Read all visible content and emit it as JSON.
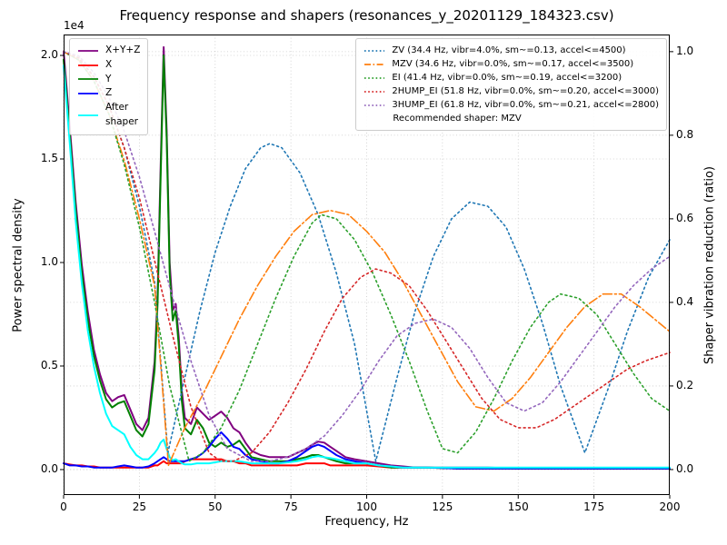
{
  "title": "Frequency response and shapers (resonances_y_20201129_184323.csv)",
  "axes": {
    "x": {
      "label": "Frequency, Hz",
      "range": [
        0,
        200
      ],
      "tick_values": [
        0,
        25,
        50,
        75,
        100,
        125,
        150,
        175,
        200
      ],
      "tick_labels": [
        "0",
        "25",
        "50",
        "75",
        "100",
        "125",
        "150",
        "175",
        "200"
      ]
    },
    "y_left": {
      "label": "Power spectral density",
      "offset_text": "1e4",
      "range": [
        -0.123,
        2.101
      ],
      "tick_values": [
        0,
        0.5,
        1,
        1.5,
        2
      ],
      "tick_labels": [
        "0.0",
        "0.5",
        "1.0",
        "1.5",
        "2.0"
      ]
    },
    "y_right": {
      "label": "Shaper vibration reduction (ratio)",
      "range": [
        -0.061,
        1.041
      ],
      "tick_values": [
        0,
        0.2,
        0.4,
        0.6,
        0.8,
        1
      ],
      "tick_labels": [
        "0.0",
        "0.2",
        "0.4",
        "0.6",
        "0.8",
        "1.0"
      ]
    }
  },
  "legend_psd": {
    "items": [
      {
        "label": "X+Y+Z",
        "color": "#800080",
        "style": "solid"
      },
      {
        "label": "X",
        "color": "#ff0000",
        "style": "solid"
      },
      {
        "label": "Y",
        "color": "#008000",
        "style": "solid"
      },
      {
        "label": "Z",
        "color": "#0000ff",
        "style": "solid"
      },
      {
        "label": "After\nshaper",
        "color": "#00ffff",
        "style": "solid"
      }
    ]
  },
  "legend_shapers": {
    "items": [
      {
        "label": "ZV (34.4 Hz, vibr=4.0%, sm~=0.13, accel<=4500)",
        "color": "#1f77b4",
        "style": "dotted"
      },
      {
        "label": "MZV (34.6 Hz, vibr=0.0%, sm~=0.17, accel<=3500)",
        "color": "#ff7f0e",
        "style": "dashdot"
      },
      {
        "label": "EI (41.4 Hz, vibr=0.0%, sm~=0.19, accel<=3200)",
        "color": "#2ca02c",
        "style": "dotted"
      },
      {
        "label": "2HUMP_EI (51.8 Hz, vibr=0.0%, sm~=0.20, accel<=3000)",
        "color": "#d62728",
        "style": "dotted"
      },
      {
        "label": "3HUMP_EI (61.8 Hz, vibr=0.0%, sm~=0.21, accel<=2800)",
        "color": "#9467bd",
        "style": "dotted"
      }
    ],
    "footer": "Recommended shaper: MZV"
  },
  "chart_data": {
    "type": "line",
    "title": "Frequency response and shapers (resonances_y_20201129_184323.csv)",
    "xlabel": "Frequency, Hz",
    "ylabel": "Power spectral density (1e4)",
    "ylabel_right": "Shaper vibration reduction (ratio)",
    "xlim": [
      0,
      200
    ],
    "ylim_left_1e4": [
      0,
      2.1
    ],
    "ylim_right": [
      0,
      1.0
    ],
    "grid": true,
    "legend_position": [
      "upper left",
      "upper right"
    ],
    "x_psd": [
      0,
      2,
      4,
      6,
      8,
      10,
      12,
      14,
      16,
      18,
      20,
      22,
      24,
      26,
      28,
      30,
      31,
      32,
      33,
      34,
      35,
      36,
      37,
      38,
      39,
      40,
      42,
      44,
      46,
      48,
      50,
      52,
      54,
      56,
      58,
      60,
      62,
      65,
      68,
      71,
      74,
      77,
      80,
      82,
      84,
      86,
      88,
      90,
      93,
      96,
      100,
      104,
      108,
      112,
      116,
      120,
      130,
      140,
      150,
      160,
      170,
      180,
      190,
      200
    ],
    "series": [
      {
        "name": "X+Y+Z",
        "axis": "left",
        "color": "#800080",
        "style": "solid",
        "width": 2,
        "y": [
          2.02,
          1.66,
          1.29,
          0.99,
          0.76,
          0.58,
          0.46,
          0.37,
          0.33,
          0.35,
          0.36,
          0.29,
          0.22,
          0.19,
          0.25,
          0.52,
          0.84,
          1.45,
          2.04,
          1.64,
          1.0,
          0.77,
          0.8,
          0.64,
          0.38,
          0.25,
          0.22,
          0.3,
          0.27,
          0.24,
          0.26,
          0.28,
          0.25,
          0.2,
          0.18,
          0.13,
          0.09,
          0.07,
          0.06,
          0.06,
          0.06,
          0.08,
          0.1,
          0.12,
          0.135,
          0.13,
          0.11,
          0.09,
          0.06,
          0.05,
          0.04,
          0.03,
          0.02,
          0.015,
          0.01,
          0.01,
          0.01,
          0.01,
          0.005,
          0.005,
          0.005,
          0.005,
          0.005,
          0.005
        ]
      },
      {
        "name": "X",
        "axis": "left",
        "color": "#ff0000",
        "style": "solid",
        "width": 2,
        "y": [
          0.03,
          0.025,
          0.02,
          0.02,
          0.015,
          0.015,
          0.01,
          0.01,
          0.01,
          0.01,
          0.01,
          0.01,
          0.01,
          0.01,
          0.01,
          0.02,
          0.02,
          0.03,
          0.04,
          0.03,
          0.03,
          0.03,
          0.03,
          0.03,
          0.03,
          0.04,
          0.05,
          0.05,
          0.05,
          0.05,
          0.05,
          0.05,
          0.04,
          0.04,
          0.03,
          0.03,
          0.02,
          0.02,
          0.02,
          0.02,
          0.02,
          0.02,
          0.03,
          0.03,
          0.03,
          0.03,
          0.02,
          0.02,
          0.02,
          0.02,
          0.02,
          0.015,
          0.01,
          0.01,
          0.01,
          0.01,
          0.005,
          0.005,
          0.005,
          0.005,
          0.005,
          0.005,
          0.005,
          0.005
        ]
      },
      {
        "name": "Y",
        "axis": "left",
        "color": "#008000",
        "style": "solid",
        "width": 2,
        "y": [
          1.98,
          1.62,
          1.25,
          0.95,
          0.72,
          0.55,
          0.43,
          0.34,
          0.3,
          0.32,
          0.33,
          0.26,
          0.19,
          0.16,
          0.22,
          0.48,
          0.8,
          1.4,
          2.0,
          1.6,
          0.95,
          0.72,
          0.77,
          0.6,
          0.33,
          0.2,
          0.17,
          0.24,
          0.2,
          0.13,
          0.11,
          0.13,
          0.11,
          0.12,
          0.14,
          0.1,
          0.06,
          0.05,
          0.04,
          0.04,
          0.04,
          0.05,
          0.06,
          0.07,
          0.07,
          0.06,
          0.05,
          0.04,
          0.03,
          0.03,
          0.03,
          0.02,
          0.01,
          0.01,
          0.01,
          0.01,
          0.005,
          0.005,
          0.005,
          0.005,
          0.005,
          0.005,
          0.005,
          0.005
        ]
      },
      {
        "name": "Z",
        "axis": "left",
        "color": "#0000ff",
        "style": "solid",
        "width": 2,
        "y": [
          0.03,
          0.02,
          0.02,
          0.015,
          0.015,
          0.01,
          0.01,
          0.01,
          0.01,
          0.015,
          0.02,
          0.015,
          0.01,
          0.01,
          0.015,
          0.03,
          0.04,
          0.05,
          0.06,
          0.05,
          0.04,
          0.04,
          0.04,
          0.04,
          0.04,
          0.04,
          0.05,
          0.06,
          0.08,
          0.11,
          0.15,
          0.18,
          0.15,
          0.11,
          0.1,
          0.07,
          0.05,
          0.04,
          0.03,
          0.03,
          0.04,
          0.06,
          0.09,
          0.11,
          0.12,
          0.11,
          0.09,
          0.07,
          0.05,
          0.04,
          0.03,
          0.02,
          0.015,
          0.01,
          0.01,
          0.01,
          0.005,
          0.005,
          0.005,
          0.005,
          0.005,
          0.005,
          0.005,
          0.005
        ]
      },
      {
        "name": "After shaper",
        "axis": "left",
        "color": "#00ffff",
        "style": "solid",
        "width": 2,
        "y": [
          1.95,
          1.58,
          1.2,
          0.9,
          0.67,
          0.5,
          0.37,
          0.27,
          0.21,
          0.19,
          0.17,
          0.11,
          0.07,
          0.05,
          0.05,
          0.08,
          0.1,
          0.13,
          0.145,
          0.1,
          0.06,
          0.045,
          0.05,
          0.04,
          0.03,
          0.025,
          0.025,
          0.03,
          0.03,
          0.03,
          0.035,
          0.04,
          0.04,
          0.04,
          0.04,
          0.035,
          0.03,
          0.03,
          0.03,
          0.03,
          0.035,
          0.04,
          0.05,
          0.06,
          0.065,
          0.06,
          0.055,
          0.05,
          0.04,
          0.03,
          0.03,
          0.02,
          0.015,
          0.01,
          0.01,
          0.01,
          0.01,
          0.01,
          0.01,
          0.01,
          0.01,
          0.01,
          0.01,
          0.01
        ]
      },
      {
        "name": "ZV",
        "axis": "right",
        "color": "#1f77b4",
        "style": "dotted",
        "width": 1.6,
        "x": [
          0,
          5,
          10,
          15,
          20,
          25,
          30,
          34.4,
          40,
          45,
          50,
          55,
          60,
          65,
          68,
          72,
          78,
          84,
          90,
          96,
          103,
          110,
          116,
          122,
          128,
          134,
          140,
          146,
          152,
          158,
          164,
          172,
          180,
          186,
          193,
          200
        ],
        "y": [
          1.0,
          0.985,
          0.94,
          0.87,
          0.77,
          0.63,
          0.45,
          0.04,
          0.22,
          0.38,
          0.52,
          0.63,
          0.72,
          0.77,
          0.78,
          0.77,
          0.71,
          0.61,
          0.47,
          0.3,
          0.02,
          0.22,
          0.38,
          0.51,
          0.6,
          0.64,
          0.63,
          0.58,
          0.48,
          0.35,
          0.2,
          0.04,
          0.2,
          0.33,
          0.46,
          0.55
        ]
      },
      {
        "name": "MZV",
        "axis": "right",
        "color": "#ff7f0e",
        "style": "dashdot",
        "width": 1.6,
        "x": [
          0,
          5,
          10,
          15,
          20,
          25,
          30,
          34.6,
          40,
          46,
          52,
          58,
          64,
          70,
          76,
          82,
          88,
          94,
          100,
          106,
          112,
          118,
          124,
          130,
          136,
          142,
          148,
          154,
          160,
          166,
          172,
          178,
          184,
          190,
          195,
          200
        ],
        "y": [
          1.0,
          0.98,
          0.93,
          0.85,
          0.74,
          0.6,
          0.44,
          0.01,
          0.1,
          0.18,
          0.27,
          0.36,
          0.44,
          0.51,
          0.57,
          0.61,
          0.62,
          0.61,
          0.57,
          0.52,
          0.45,
          0.37,
          0.29,
          0.21,
          0.15,
          0.14,
          0.17,
          0.22,
          0.28,
          0.34,
          0.39,
          0.42,
          0.42,
          0.39,
          0.36,
          0.33
        ]
      },
      {
        "name": "EI",
        "axis": "right",
        "color": "#2ca02c",
        "style": "dotted",
        "width": 1.6,
        "x": [
          0,
          5,
          10,
          15,
          20,
          25,
          30,
          35,
          41.4,
          46,
          52,
          58,
          64,
          70,
          76,
          82,
          85,
          90,
          96,
          102,
          108,
          114,
          120,
          125,
          130,
          136,
          142,
          148,
          154,
          160,
          164,
          170,
          176,
          182,
          188,
          194,
          200
        ],
        "y": [
          1.0,
          0.98,
          0.93,
          0.85,
          0.73,
          0.58,
          0.4,
          0.2,
          0.02,
          0.04,
          0.1,
          0.19,
          0.3,
          0.41,
          0.51,
          0.59,
          0.61,
          0.6,
          0.55,
          0.47,
          0.37,
          0.26,
          0.14,
          0.05,
          0.04,
          0.09,
          0.17,
          0.26,
          0.34,
          0.4,
          0.42,
          0.41,
          0.37,
          0.3,
          0.23,
          0.17,
          0.14
        ]
      },
      {
        "name": "2HUMP_EI",
        "axis": "right",
        "color": "#d62728",
        "style": "dotted",
        "width": 1.6,
        "x": [
          0,
          5,
          10,
          15,
          20,
          25,
          30,
          36,
          42,
          48,
          51.8,
          56,
          62,
          68,
          74,
          80,
          86,
          92,
          98,
          103,
          108,
          114,
          120,
          126,
          132,
          138,
          144,
          150,
          156,
          162,
          168,
          174,
          180,
          186,
          192,
          200
        ],
        "y": [
          1.0,
          0.985,
          0.94,
          0.87,
          0.77,
          0.65,
          0.5,
          0.32,
          0.15,
          0.04,
          0.02,
          0.02,
          0.04,
          0.09,
          0.16,
          0.24,
          0.33,
          0.41,
          0.46,
          0.48,
          0.47,
          0.44,
          0.38,
          0.31,
          0.24,
          0.17,
          0.12,
          0.1,
          0.1,
          0.12,
          0.15,
          0.18,
          0.21,
          0.24,
          0.26,
          0.28
        ]
      },
      {
        "name": "3HUMP_EI",
        "axis": "right",
        "color": "#9467bd",
        "style": "dotted",
        "width": 1.6,
        "x": [
          0,
          5,
          10,
          15,
          20,
          25,
          30,
          36,
          42,
          48,
          54,
          61.8,
          68,
          74,
          80,
          86,
          92,
          98,
          104,
          110,
          116,
          122,
          128,
          134,
          140,
          146,
          152,
          158,
          164,
          170,
          176,
          182,
          188,
          194,
          200
        ],
        "y": [
          1.0,
          0.99,
          0.95,
          0.89,
          0.81,
          0.7,
          0.57,
          0.41,
          0.26,
          0.13,
          0.05,
          0.02,
          0.02,
          0.03,
          0.05,
          0.08,
          0.13,
          0.19,
          0.26,
          0.32,
          0.35,
          0.36,
          0.34,
          0.29,
          0.22,
          0.16,
          0.14,
          0.16,
          0.21,
          0.27,
          0.33,
          0.39,
          0.44,
          0.48,
          0.51
        ]
      }
    ]
  }
}
